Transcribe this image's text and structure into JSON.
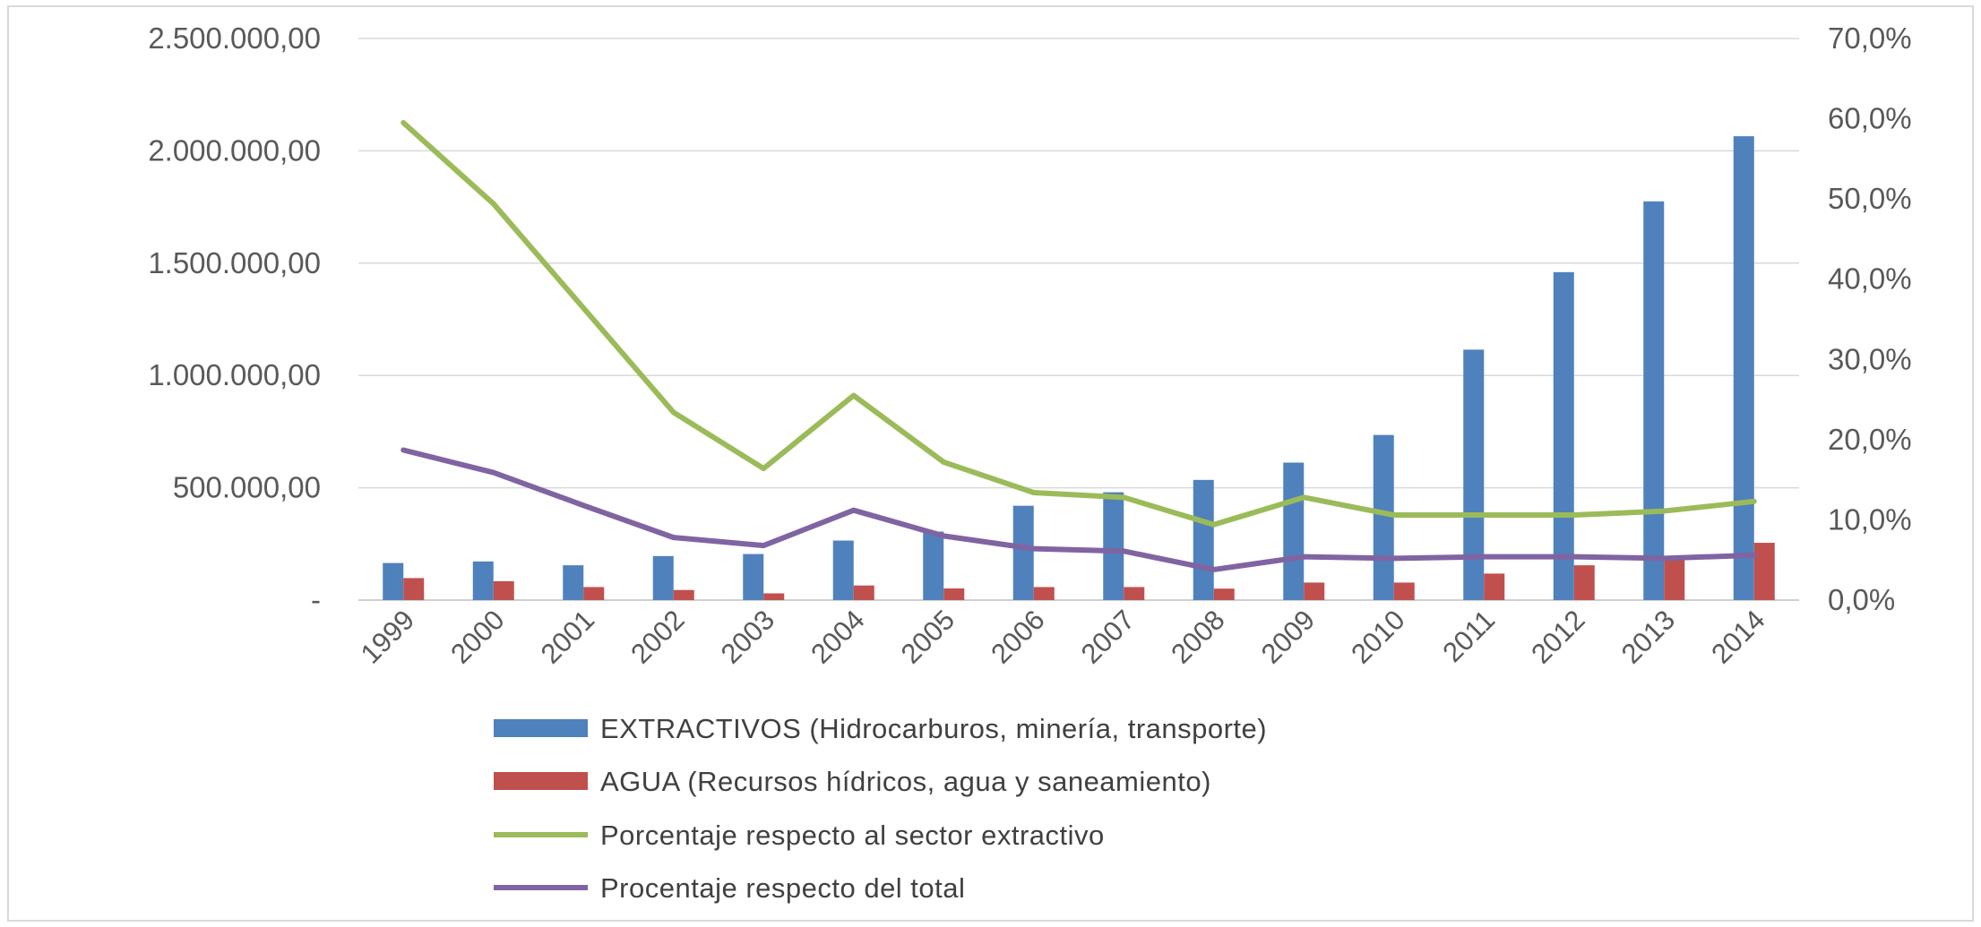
{
  "chart_data": {
    "type": "bar",
    "categories": [
      "1999",
      "2000",
      "2001",
      "2002",
      "2003",
      "2004",
      "2005",
      "2006",
      "2007",
      "2008",
      "2009",
      "2010",
      "2011",
      "2012",
      "2013",
      "2014"
    ],
    "series": [
      {
        "name": "EXTRACTIVOS (Hidrocarburos, minería, transporte)",
        "kind": "bar",
        "axis": "left",
        "color": "#4F81BD",
        "values": [
          165000,
          172000,
          155000,
          196000,
          205000,
          265000,
          305000,
          420000,
          480000,
          535000,
          612000,
          735000,
          1115000,
          1460000,
          1775000,
          2065000
        ]
      },
      {
        "name": "AGUA (Recursos hídricos, agua y saneamiento)",
        "kind": "bar",
        "axis": "left",
        "color": "#C0504D",
        "values": [
          98000,
          84000,
          58000,
          45000,
          30000,
          65000,
          52000,
          58000,
          58000,
          51000,
          78000,
          78000,
          118000,
          155000,
          195000,
          255000
        ]
      },
      {
        "name": "Porcentaje respecto al sector extractivo",
        "kind": "line",
        "axis": "right",
        "color": "#9BBB59",
        "values": [
          59.5,
          49.4,
          36.4,
          23.4,
          16.4,
          25.5,
          17.2,
          13.4,
          12.8,
          9.4,
          12.8,
          10.6,
          10.6,
          10.6,
          11.1,
          12.3
        ]
      },
      {
        "name": "Procentaje respecto del total",
        "kind": "line",
        "axis": "right",
        "color": "#8064A2",
        "values": [
          18.7,
          15.9,
          11.8,
          7.8,
          6.8,
          11.2,
          8.0,
          6.4,
          6.1,
          3.8,
          5.4,
          5.2,
          5.4,
          5.4,
          5.2,
          5.6
        ]
      }
    ],
    "left_axis": {
      "min": 0,
      "max": 2500000,
      "tick_labels": [
        "-",
        "500.000,00",
        "1.000.000,00",
        "1.500.000,00",
        "2.000.000,00",
        "2.500.000,00"
      ]
    },
    "right_axis": {
      "min": 0,
      "max": 70,
      "tick_labels": [
        "0,0%",
        "10,0%",
        "20,0%",
        "30,0%",
        "40,0%",
        "50,0%",
        "60,0%",
        "70,0%"
      ]
    },
    "grid": true,
    "legend_position": "bottom"
  }
}
